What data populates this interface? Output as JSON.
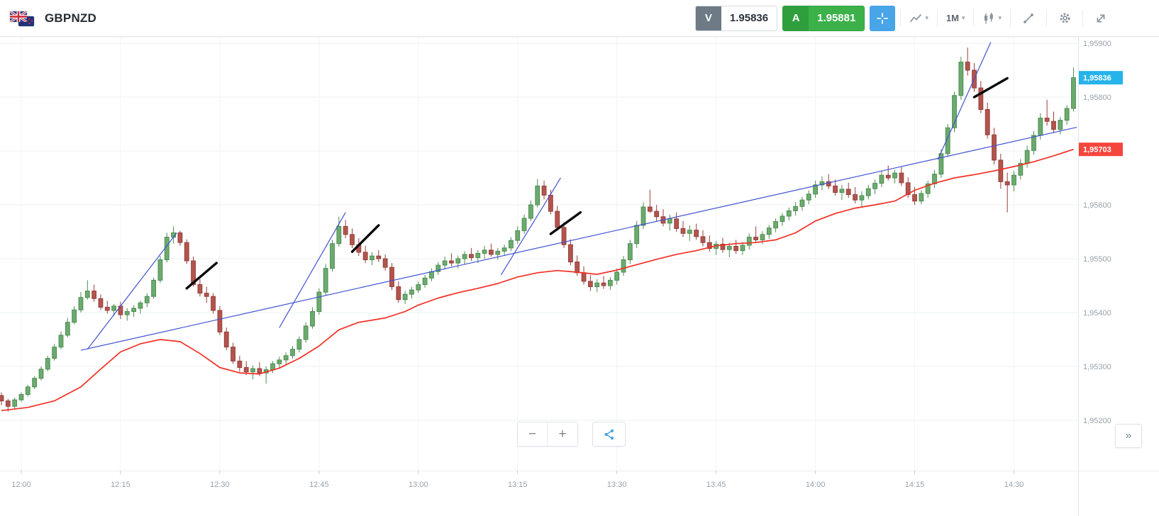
{
  "header": {
    "symbol": "GBPNZD",
    "sell": {
      "tag": "V",
      "price": "1.95836"
    },
    "buy": {
      "tag": "A",
      "price": "1.95881"
    },
    "timeframe": "1M"
  },
  "controls": {
    "zoom_out": "−",
    "zoom_in": "+",
    "collapse": "»"
  },
  "icons": {
    "chevron_down": "▾",
    "names": [
      "gbp-flag-icon",
      "nzd-flag-icon",
      "crosshair-icon",
      "line-chart-icon",
      "candlestick-icon",
      "trendline-tool-icon",
      "gear-icon",
      "expand-icon",
      "share-icon"
    ]
  },
  "chart_data": {
    "type": "candlestick",
    "symbol": "GBPNZD",
    "interval": "1M",
    "start_time": "11:57",
    "interval_minutes": 1,
    "price_encoding": "price = 1.95 + value * 0.00001",
    "ylim": [
      1.9515,
      1.9592
    ],
    "grid": true,
    "y_ticks": [
      {
        "label": "1,95900",
        "pips": 900
      },
      {
        "label": "1,95800",
        "pips": 800
      },
      {
        "label": "1,95700",
        "pips": 700
      },
      {
        "label": "1,95600",
        "pips": 600
      },
      {
        "label": "1,95500",
        "pips": 500
      },
      {
        "label": "1,95400",
        "pips": 400
      },
      {
        "label": "1,95300",
        "pips": 300
      },
      {
        "label": "1,95200",
        "pips": 200
      }
    ],
    "x_ticks": [
      {
        "label": "12:00",
        "i": 3
      },
      {
        "label": "12:15",
        "i": 18
      },
      {
        "label": "12:30",
        "i": 33
      },
      {
        "label": "12:45",
        "i": 48
      },
      {
        "label": "13:00",
        "i": 63
      },
      {
        "label": "13:15",
        "i": 78
      },
      {
        "label": "13:30",
        "i": 93
      },
      {
        "label": "13:45",
        "i": 108
      },
      {
        "label": "14:00",
        "i": 123
      },
      {
        "label": "14:15",
        "i": 138
      },
      {
        "label": "14:30",
        "i": 153
      }
    ],
    "candles": [
      [
        246,
        252,
        228,
        236
      ],
      [
        236,
        240,
        216,
        226
      ],
      [
        226,
        242,
        222,
        238
      ],
      [
        238,
        252,
        234,
        248
      ],
      [
        248,
        266,
        244,
        262
      ],
      [
        262,
        282,
        258,
        278
      ],
      [
        278,
        300,
        274,
        295
      ],
      [
        295,
        320,
        291,
        315
      ],
      [
        315,
        342,
        311,
        336
      ],
      [
        336,
        365,
        332,
        358
      ],
      [
        358,
        390,
        354,
        382
      ],
      [
        382,
        412,
        378,
        405
      ],
      [
        405,
        438,
        400,
        428
      ],
      [
        428,
        460,
        424,
        440
      ],
      [
        440,
        452,
        420,
        426
      ],
      [
        426,
        434,
        405,
        410
      ],
      [
        410,
        422,
        398,
        404
      ],
      [
        404,
        416,
        394,
        412
      ],
      [
        412,
        420,
        388,
        396
      ],
      [
        396,
        408,
        385,
        402
      ],
      [
        402,
        414,
        392,
        408
      ],
      [
        408,
        422,
        398,
        418
      ],
      [
        418,
        436,
        410,
        430
      ],
      [
        430,
        465,
        426,
        460
      ],
      [
        460,
        505,
        455,
        498
      ],
      [
        498,
        548,
        493,
        540
      ],
      [
        540,
        560,
        528,
        548
      ],
      [
        548,
        552,
        524,
        530
      ],
      [
        530,
        536,
        490,
        496
      ],
      [
        496,
        504,
        448,
        452
      ],
      [
        452,
        462,
        430,
        436
      ],
      [
        436,
        448,
        418,
        430
      ],
      [
        430,
        436,
        398,
        404
      ],
      [
        404,
        412,
        358,
        364
      ],
      [
        364,
        372,
        330,
        336
      ],
      [
        336,
        344,
        305,
        310
      ],
      [
        310,
        320,
        290,
        298
      ],
      [
        298,
        310,
        284,
        290
      ],
      [
        290,
        302,
        276,
        296
      ],
      [
        296,
        308,
        282,
        288
      ],
      [
        288,
        300,
        268,
        294
      ],
      [
        294,
        310,
        288,
        305
      ],
      [
        305,
        318,
        296,
        312
      ],
      [
        312,
        326,
        304,
        320
      ],
      [
        320,
        338,
        314,
        332
      ],
      [
        332,
        356,
        326,
        350
      ],
      [
        350,
        382,
        344,
        375
      ],
      [
        375,
        410,
        370,
        402
      ],
      [
        402,
        445,
        396,
        438
      ],
      [
        438,
        490,
        432,
        482
      ],
      [
        482,
        535,
        476,
        528
      ],
      [
        528,
        578,
        522,
        560
      ],
      [
        560,
        572,
        538,
        545
      ],
      [
        545,
        556,
        520,
        526
      ],
      [
        526,
        538,
        505,
        512
      ],
      [
        512,
        524,
        492,
        498
      ],
      [
        498,
        512,
        488,
        505
      ],
      [
        505,
        516,
        494,
        500
      ],
      [
        500,
        508,
        478,
        484
      ],
      [
        484,
        492,
        442,
        448
      ],
      [
        448,
        458,
        418,
        424
      ],
      [
        424,
        440,
        416,
        434
      ],
      [
        434,
        448,
        426,
        442
      ],
      [
        442,
        458,
        436,
        452
      ],
      [
        452,
        470,
        446,
        464
      ],
      [
        464,
        482,
        458,
        476
      ],
      [
        476,
        494,
        470,
        488
      ],
      [
        488,
        504,
        480,
        496
      ],
      [
        496,
        510,
        486,
        492
      ],
      [
        492,
        506,
        482,
        500
      ],
      [
        500,
        514,
        490,
        508
      ],
      [
        508,
        520,
        496,
        502
      ],
      [
        502,
        516,
        492,
        510
      ],
      [
        510,
        524,
        500,
        516
      ],
      [
        516,
        528,
        504,
        508
      ],
      [
        508,
        520,
        498,
        514
      ],
      [
        514,
        526,
        506,
        520
      ],
      [
        520,
        540,
        514,
        534
      ],
      [
        534,
        560,
        528,
        552
      ],
      [
        552,
        582,
        546,
        575
      ],
      [
        575,
        608,
        570,
        600
      ],
      [
        600,
        648,
        595,
        635
      ],
      [
        635,
        645,
        610,
        618
      ],
      [
        618,
        628,
        582,
        588
      ],
      [
        588,
        598,
        552,
        558
      ],
      [
        558,
        568,
        520,
        526
      ],
      [
        526,
        536,
        488,
        494
      ],
      [
        494,
        506,
        468,
        474
      ],
      [
        474,
        486,
        452,
        458
      ],
      [
        458,
        470,
        440,
        448
      ],
      [
        448,
        462,
        438,
        455
      ],
      [
        455,
        468,
        444,
        450
      ],
      [
        450,
        466,
        442,
        460
      ],
      [
        460,
        482,
        452,
        475
      ],
      [
        475,
        505,
        468,
        498
      ],
      [
        498,
        535,
        490,
        528
      ],
      [
        528,
        570,
        520,
        562
      ],
      [
        562,
        605,
        555,
        596
      ],
      [
        596,
        628,
        585,
        588
      ],
      [
        588,
        600,
        570,
        578
      ],
      [
        578,
        592,
        560,
        566
      ],
      [
        566,
        582,
        552,
        574
      ],
      [
        574,
        586,
        550,
        556
      ],
      [
        556,
        570,
        540,
        547
      ],
      [
        547,
        562,
        533,
        553
      ],
      [
        553,
        565,
        535,
        541
      ],
      [
        541,
        553,
        523,
        530
      ],
      [
        530,
        543,
        513,
        519
      ],
      [
        519,
        533,
        507,
        527
      ],
      [
        527,
        539,
        511,
        517
      ],
      [
        517,
        530,
        503,
        523
      ],
      [
        523,
        535,
        509,
        515
      ],
      [
        515,
        531,
        507,
        525
      ],
      [
        525,
        547,
        517,
        540
      ],
      [
        540,
        560,
        531,
        535
      ],
      [
        535,
        551,
        527,
        545
      ],
      [
        545,
        563,
        537,
        557
      ],
      [
        557,
        575,
        549,
        569
      ],
      [
        569,
        585,
        561,
        579
      ],
      [
        579,
        595,
        571,
        589
      ],
      [
        589,
        605,
        580,
        597
      ],
      [
        597,
        615,
        589,
        609
      ],
      [
        609,
        627,
        601,
        620
      ],
      [
        620,
        645,
        613,
        637
      ],
      [
        637,
        653,
        627,
        643
      ],
      [
        643,
        657,
        629,
        635
      ],
      [
        635,
        647,
        617,
        623
      ],
      [
        623,
        637,
        609,
        629
      ],
      [
        629,
        641,
        613,
        619
      ],
      [
        619,
        633,
        603,
        609
      ],
      [
        609,
        625,
        597,
        617
      ],
      [
        617,
        637,
        610,
        630
      ],
      [
        630,
        647,
        620,
        640
      ],
      [
        640,
        663,
        633,
        655
      ],
      [
        655,
        673,
        645,
        650
      ],
      [
        650,
        665,
        640,
        659
      ],
      [
        659,
        670,
        635,
        641
      ],
      [
        641,
        651,
        613,
        619
      ],
      [
        619,
        633,
        600,
        607
      ],
      [
        607,
        627,
        601,
        621
      ],
      [
        621,
        645,
        613,
        639
      ],
      [
        639,
        665,
        631,
        657
      ],
      [
        657,
        703,
        650,
        695
      ],
      [
        695,
        750,
        689,
        743
      ],
      [
        743,
        810,
        735,
        803
      ],
      [
        803,
        875,
        795,
        865
      ],
      [
        865,
        892,
        840,
        850
      ],
      [
        850,
        863,
        810,
        817
      ],
      [
        817,
        830,
        770,
        777
      ],
      [
        777,
        790,
        723,
        730
      ],
      [
        730,
        743,
        675,
        683
      ],
      [
        683,
        695,
        630,
        643
      ],
      [
        643,
        660,
        586,
        637
      ],
      [
        637,
        663,
        625,
        655
      ],
      [
        655,
        685,
        647,
        677
      ],
      [
        677,
        710,
        669,
        701
      ],
      [
        701,
        737,
        693,
        729
      ],
      [
        729,
        770,
        721,
        761
      ],
      [
        761,
        795,
        747,
        755
      ],
      [
        755,
        773,
        733,
        740
      ],
      [
        740,
        763,
        731,
        757
      ],
      [
        757,
        785,
        749,
        779
      ],
      [
        779,
        855,
        773,
        836
      ]
    ],
    "ma": [
      [
        0,
        218
      ],
      [
        4,
        224
      ],
      [
        8,
        236
      ],
      [
        12,
        262
      ],
      [
        15,
        295
      ],
      [
        18,
        327
      ],
      [
        21,
        342
      ],
      [
        24,
        350
      ],
      [
        27,
        346
      ],
      [
        30,
        324
      ],
      [
        33,
        298
      ],
      [
        36,
        288
      ],
      [
        39,
        286
      ],
      [
        42,
        297
      ],
      [
        45,
        315
      ],
      [
        48,
        338
      ],
      [
        51,
        368
      ],
      [
        54,
        382
      ],
      [
        58,
        390
      ],
      [
        61,
        402
      ],
      [
        63,
        414
      ],
      [
        66,
        427
      ],
      [
        69,
        437
      ],
      [
        72,
        445
      ],
      [
        75,
        454
      ],
      [
        78,
        466
      ],
      [
        81,
        474
      ],
      [
        84,
        478
      ],
      [
        87,
        475
      ],
      [
        90,
        471
      ],
      [
        93,
        479
      ],
      [
        96,
        489
      ],
      [
        99,
        499
      ],
      [
        102,
        508
      ],
      [
        105,
        515
      ],
      [
        108,
        524
      ],
      [
        111,
        528
      ],
      [
        114,
        530
      ],
      [
        117,
        535
      ],
      [
        120,
        548
      ],
      [
        123,
        570
      ],
      [
        126,
        584
      ],
      [
        129,
        594
      ],
      [
        132,
        600
      ],
      [
        135,
        607
      ],
      [
        138,
        627
      ],
      [
        141,
        640
      ],
      [
        144,
        650
      ],
      [
        147,
        656
      ],
      [
        150,
        663
      ],
      [
        153,
        671
      ],
      [
        156,
        680
      ],
      [
        159,
        691
      ],
      [
        162,
        703
      ]
    ],
    "trendlines": [
      [
        13,
        332,
        26.5,
        548
      ],
      [
        42,
        372,
        52,
        586
      ],
      [
        75.5,
        470,
        84.5,
        650
      ],
      [
        141.5,
        684,
        149.5,
        902
      ],
      [
        12,
        330,
        162.5,
        744
      ]
    ],
    "annotations": [
      [
        28,
        445,
        32.5,
        492
      ],
      [
        53,
        513,
        57,
        562
      ],
      [
        83,
        546,
        87.5,
        586
      ],
      [
        147,
        800,
        152,
        835
      ]
    ],
    "badges": {
      "current": {
        "label": "1,95836",
        "pips": 836,
        "color": "#26b3ea"
      },
      "ma": {
        "label": "1,95703",
        "pips": 703,
        "color": "#f5463d"
      }
    },
    "colors": {
      "up": "#6cab6e",
      "up_border": "#4d8c50",
      "down": "#b4544e",
      "down_border": "#943f3a",
      "ma": "#f22f25",
      "trendline": "#4053d0",
      "annotation": "#0a0a0a",
      "grid": "#edf0f2",
      "grid_v": "#f2f4f6",
      "axis_text": "#98a2aa"
    }
  }
}
